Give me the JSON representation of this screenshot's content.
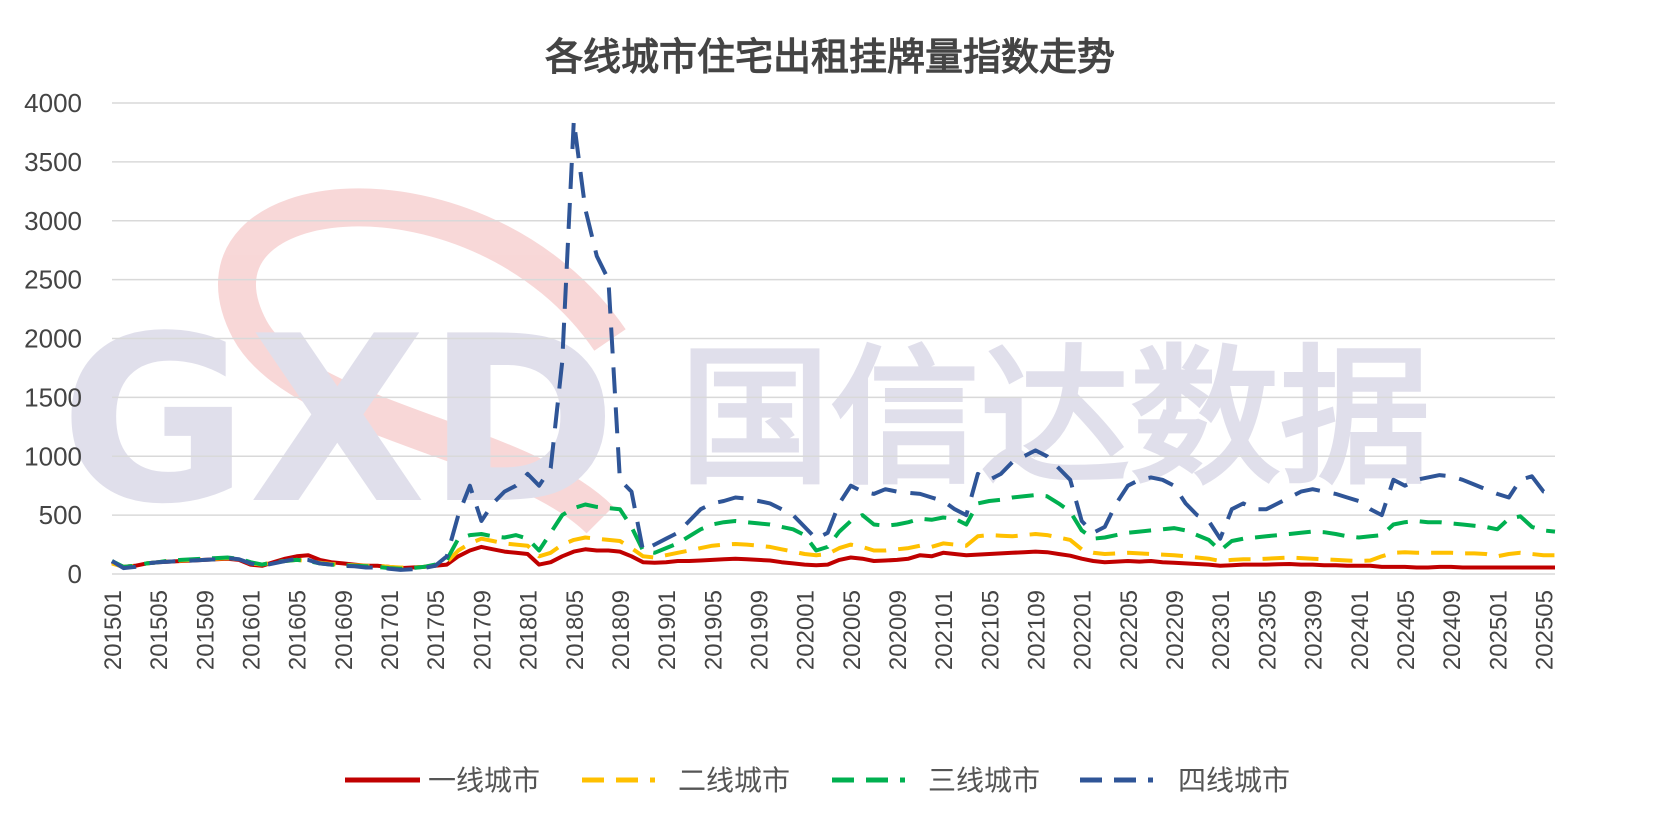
{
  "chart_data": {
    "type": "line",
    "title": "各线城市住宅出租挂牌量指数走势",
    "ylim": [
      0,
      4000
    ],
    "yticks": [
      0,
      500,
      1000,
      1500,
      2000,
      2500,
      3000,
      3500,
      4000
    ],
    "grid": true,
    "legend_position": "bottom",
    "watermark": {
      "logo": "GXD",
      "text": "国信达数据"
    },
    "x": [
      "201501",
      "201502",
      "201503",
      "201504",
      "201505",
      "201506",
      "201507",
      "201508",
      "201509",
      "201510",
      "201511",
      "201512",
      "201601",
      "201602",
      "201603",
      "201604",
      "201605",
      "201606",
      "201607",
      "201608",
      "201609",
      "201610",
      "201611",
      "201612",
      "201701",
      "201702",
      "201703",
      "201704",
      "201705",
      "201706",
      "201707",
      "201708",
      "201709",
      "201710",
      "201711",
      "201712",
      "201801",
      "201802",
      "201803",
      "201804",
      "201805",
      "201806",
      "201807",
      "201808",
      "201809",
      "201810",
      "201811",
      "201812",
      "201901",
      "201902",
      "201903",
      "201904",
      "201905",
      "201906",
      "201907",
      "201908",
      "201909",
      "201910",
      "201911",
      "201912",
      "202001",
      "202002",
      "202003",
      "202004",
      "202005",
      "202006",
      "202007",
      "202008",
      "202009",
      "202010",
      "202011",
      "202012",
      "202101",
      "202102",
      "202103",
      "202104",
      "202105",
      "202106",
      "202107",
      "202108",
      "202109",
      "202110",
      "202111",
      "202112",
      "202201",
      "202202",
      "202203",
      "202204",
      "202205",
      "202206",
      "202207",
      "202208",
      "202209",
      "202210",
      "202211",
      "202212",
      "202301",
      "202302",
      "202303",
      "202304",
      "202305",
      "202306",
      "202307",
      "202308",
      "202309",
      "202310",
      "202311",
      "202312",
      "202401",
      "202402",
      "202403",
      "202404",
      "202405",
      "202406",
      "202407",
      "202408",
      "202409",
      "202410",
      "202411",
      "202412",
      "202501",
      "202502",
      "202503",
      "202504",
      "202505",
      "202506"
    ],
    "xtick_labels": [
      "201501",
      "201505",
      "201509",
      "201601",
      "201605",
      "201609",
      "201701",
      "201705",
      "201709",
      "201801",
      "201805",
      "201809",
      "201901",
      "201905",
      "201909",
      "202001",
      "202005",
      "202009",
      "202101",
      "202105",
      "202109",
      "202201",
      "202205",
      "202209",
      "202301",
      "202305",
      "202309",
      "202401",
      "202405",
      "202409",
      "202501",
      "202505"
    ],
    "series": [
      {
        "name": "一线城市",
        "color": "#c00000",
        "dash": "solid",
        "values": [
          100,
          60,
          70,
          90,
          100,
          105,
          110,
          115,
          120,
          125,
          130,
          120,
          80,
          70,
          100,
          130,
          150,
          160,
          120,
          100,
          90,
          80,
          70,
          70,
          60,
          50,
          55,
          60,
          70,
          80,
          150,
          200,
          230,
          210,
          190,
          180,
          170,
          80,
          100,
          150,
          190,
          210,
          200,
          200,
          190,
          150,
          100,
          95,
          100,
          110,
          110,
          115,
          120,
          125,
          130,
          125,
          120,
          115,
          100,
          90,
          80,
          75,
          80,
          120,
          140,
          130,
          110,
          115,
          120,
          130,
          160,
          150,
          180,
          170,
          160,
          165,
          170,
          175,
          180,
          185,
          190,
          185,
          170,
          155,
          130,
          110,
          100,
          105,
          110,
          105,
          110,
          100,
          95,
          90,
          85,
          80,
          70,
          75,
          80,
          80,
          80,
          82,
          85,
          80,
          80,
          75,
          75,
          70,
          70,
          70,
          60,
          60,
          60,
          55,
          55,
          60,
          60,
          55,
          55,
          55,
          55,
          55,
          55,
          55,
          55,
          55
        ]
      },
      {
        "name": "二线城市",
        "color": "#ffc000",
        "dash": "dash",
        "values": [
          90,
          60,
          70,
          90,
          100,
          110,
          115,
          120,
          125,
          130,
          135,
          125,
          90,
          80,
          100,
          110,
          120,
          110,
          95,
          85,
          80,
          75,
          70,
          70,
          60,
          55,
          55,
          60,
          75,
          100,
          200,
          260,
          300,
          280,
          260,
          250,
          240,
          150,
          180,
          250,
          290,
          310,
          300,
          290,
          280,
          220,
          150,
          140,
          160,
          180,
          200,
          220,
          240,
          250,
          255,
          250,
          240,
          230,
          210,
          190,
          170,
          160,
          170,
          220,
          250,
          230,
          200,
          200,
          210,
          220,
          240,
          230,
          260,
          250,
          240,
          320,
          330,
          325,
          320,
          330,
          340,
          330,
          310,
          290,
          210,
          180,
          170,
          175,
          180,
          175,
          170,
          165,
          160,
          150,
          140,
          130,
          110,
          120,
          125,
          125,
          130,
          135,
          140,
          135,
          130,
          125,
          120,
          115,
          110,
          115,
          150,
          180,
          185,
          180,
          180,
          180,
          180,
          175,
          175,
          170,
          150,
          170,
          180,
          170,
          160,
          160
        ]
      },
      {
        "name": "三线城市",
        "color": "#00b050",
        "dash": "dash",
        "values": [
          110,
          60,
          70,
          90,
          100,
          115,
          120,
          125,
          130,
          135,
          140,
          130,
          100,
          80,
          100,
          110,
          120,
          110,
          90,
          80,
          75,
          70,
          65,
          60,
          50,
          45,
          50,
          60,
          80,
          120,
          300,
          330,
          340,
          320,
          310,
          330,
          300,
          200,
          350,
          500,
          560,
          590,
          570,
          560,
          550,
          400,
          200,
          180,
          220,
          260,
          320,
          380,
          420,
          440,
          450,
          440,
          430,
          420,
          400,
          380,
          330,
          200,
          230,
          360,
          450,
          500,
          420,
          410,
          420,
          440,
          470,
          460,
          480,
          470,
          420,
          600,
          620,
          630,
          650,
          660,
          670,
          660,
          600,
          530,
          370,
          300,
          310,
          330,
          350,
          360,
          370,
          380,
          390,
          370,
          330,
          290,
          200,
          280,
          300,
          310,
          320,
          330,
          340,
          350,
          360,
          355,
          340,
          320,
          310,
          320,
          330,
          420,
          440,
          450,
          440,
          440,
          430,
          420,
          410,
          400,
          380,
          470,
          490,
          400,
          370,
          360
        ]
      },
      {
        "name": "四线城市",
        "color": "#2f5597",
        "dash": "dash",
        "values": [
          110,
          50,
          60,
          90,
          100,
          105,
          110,
          115,
          120,
          125,
          135,
          125,
          90,
          70,
          90,
          110,
          130,
          120,
          90,
          80,
          70,
          65,
          55,
          55,
          45,
          35,
          40,
          50,
          70,
          150,
          500,
          750,
          450,
          600,
          700,
          750,
          850,
          750,
          900,
          1800,
          3850,
          3100,
          2700,
          2500,
          800,
          700,
          200,
          250,
          300,
          350,
          450,
          550,
          600,
          620,
          650,
          640,
          620,
          600,
          550,
          500,
          400,
          300,
          350,
          600,
          750,
          700,
          680,
          720,
          700,
          690,
          680,
          650,
          620,
          550,
          500,
          850,
          800,
          850,
          950,
          1000,
          1050,
          1000,
          900,
          800,
          450,
          350,
          400,
          600,
          750,
          800,
          820,
          800,
          750,
          600,
          500,
          450,
          300,
          550,
          600,
          550,
          550,
          600,
          650,
          700,
          720,
          700,
          680,
          650,
          620,
          550,
          500,
          800,
          750,
          800,
          820,
          840,
          830,
          800,
          760,
          720,
          680,
          650,
          800,
          830,
          700,
          680
        ]
      }
    ]
  }
}
